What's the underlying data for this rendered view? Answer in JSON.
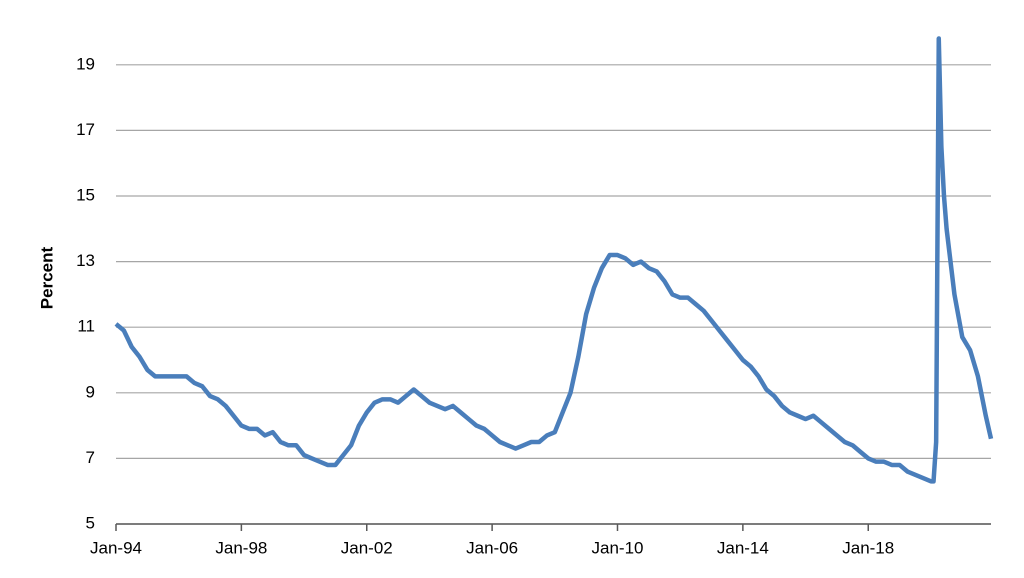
{
  "chart_data": {
    "type": "line",
    "y_label": "Percent",
    "x": [
      "1994-01",
      "1994-04",
      "1994-07",
      "1994-10",
      "1995-01",
      "1995-04",
      "1995-07",
      "1995-10",
      "1996-01",
      "1996-04",
      "1996-07",
      "1996-10",
      "1997-01",
      "1997-04",
      "1997-07",
      "1997-10",
      "1998-01",
      "1998-04",
      "1998-07",
      "1998-10",
      "1999-01",
      "1999-04",
      "1999-07",
      "1999-10",
      "2000-01",
      "2000-04",
      "2000-07",
      "2000-10",
      "2001-01",
      "2001-04",
      "2001-07",
      "2001-10",
      "2002-01",
      "2002-04",
      "2002-07",
      "2002-10",
      "2003-01",
      "2003-04",
      "2003-07",
      "2003-10",
      "2004-01",
      "2004-04",
      "2004-07",
      "2004-10",
      "2005-01",
      "2005-04",
      "2005-07",
      "2005-10",
      "2006-01",
      "2006-04",
      "2006-07",
      "2006-10",
      "2007-01",
      "2007-04",
      "2007-07",
      "2007-10",
      "2008-01",
      "2008-04",
      "2008-07",
      "2008-10",
      "2009-01",
      "2009-04",
      "2009-07",
      "2009-10",
      "2010-01",
      "2010-04",
      "2010-07",
      "2010-10",
      "2011-01",
      "2011-04",
      "2011-07",
      "2011-10",
      "2012-01",
      "2012-04",
      "2012-07",
      "2012-10",
      "2013-01",
      "2013-04",
      "2013-07",
      "2013-10",
      "2014-01",
      "2014-04",
      "2014-07",
      "2014-10",
      "2015-01",
      "2015-04",
      "2015-07",
      "2015-10",
      "2016-01",
      "2016-04",
      "2016-07",
      "2016-10",
      "2017-01",
      "2017-04",
      "2017-07",
      "2017-10",
      "2018-01",
      "2018-04",
      "2018-07",
      "2018-10",
      "2019-01",
      "2019-04",
      "2019-07",
      "2019-10",
      "2020-01",
      "2020-02",
      "2020-03",
      "2020-04",
      "2020-05",
      "2020-06",
      "2020-07",
      "2020-10",
      "2021-01",
      "2021-04",
      "2021-07",
      "2021-10",
      "2021-12"
    ],
    "series": [
      {
        "name": "Percent",
        "color": "#4a7ebb",
        "values": [
          11.1,
          10.9,
          10.4,
          10.1,
          9.7,
          9.5,
          9.5,
          9.5,
          9.5,
          9.5,
          9.3,
          9.2,
          8.9,
          8.8,
          8.6,
          8.3,
          8.0,
          7.9,
          7.9,
          7.7,
          7.8,
          7.5,
          7.4,
          7.4,
          7.1,
          7.0,
          6.9,
          6.8,
          6.8,
          7.1,
          7.4,
          8.0,
          8.4,
          8.7,
          8.8,
          8.8,
          8.7,
          8.9,
          9.1,
          8.9,
          8.7,
          8.6,
          8.5,
          8.6,
          8.4,
          8.2,
          8.0,
          7.9,
          7.7,
          7.5,
          7.4,
          7.3,
          7.4,
          7.5,
          7.5,
          7.7,
          7.8,
          8.4,
          9.0,
          10.1,
          11.4,
          12.2,
          12.8,
          13.2,
          13.2,
          13.1,
          12.9,
          13.0,
          12.8,
          12.7,
          12.4,
          12.0,
          11.9,
          11.9,
          11.7,
          11.5,
          11.2,
          10.9,
          10.6,
          10.3,
          10.0,
          9.8,
          9.5,
          9.1,
          8.9,
          8.6,
          8.4,
          8.3,
          8.2,
          8.3,
          8.1,
          7.9,
          7.7,
          7.5,
          7.4,
          7.2,
          7.0,
          6.9,
          6.9,
          6.8,
          6.8,
          6.6,
          6.5,
          6.4,
          6.3,
          6.3,
          7.5,
          19.8,
          16.5,
          15.0,
          14.0,
          12.0,
          10.7,
          10.3,
          9.5,
          8.3,
          7.6
        ]
      }
    ],
    "xlim": [
      "1994-01",
      "2021-12"
    ],
    "xticks": [
      {
        "value": "1994-01",
        "label": "Jan-94"
      },
      {
        "value": "1998-01",
        "label": "Jan-98"
      },
      {
        "value": "2002-01",
        "label": "Jan-02"
      },
      {
        "value": "2006-01",
        "label": "Jan-06"
      },
      {
        "value": "2010-01",
        "label": "Jan-10"
      },
      {
        "value": "2014-01",
        "label": "Jan-14"
      },
      {
        "value": "2018-01",
        "label": "Jan-18"
      }
    ],
    "ylim": [
      5,
      20
    ],
    "yticks": [
      5,
      7,
      9,
      11,
      13,
      15,
      17,
      19
    ],
    "grid": true
  }
}
